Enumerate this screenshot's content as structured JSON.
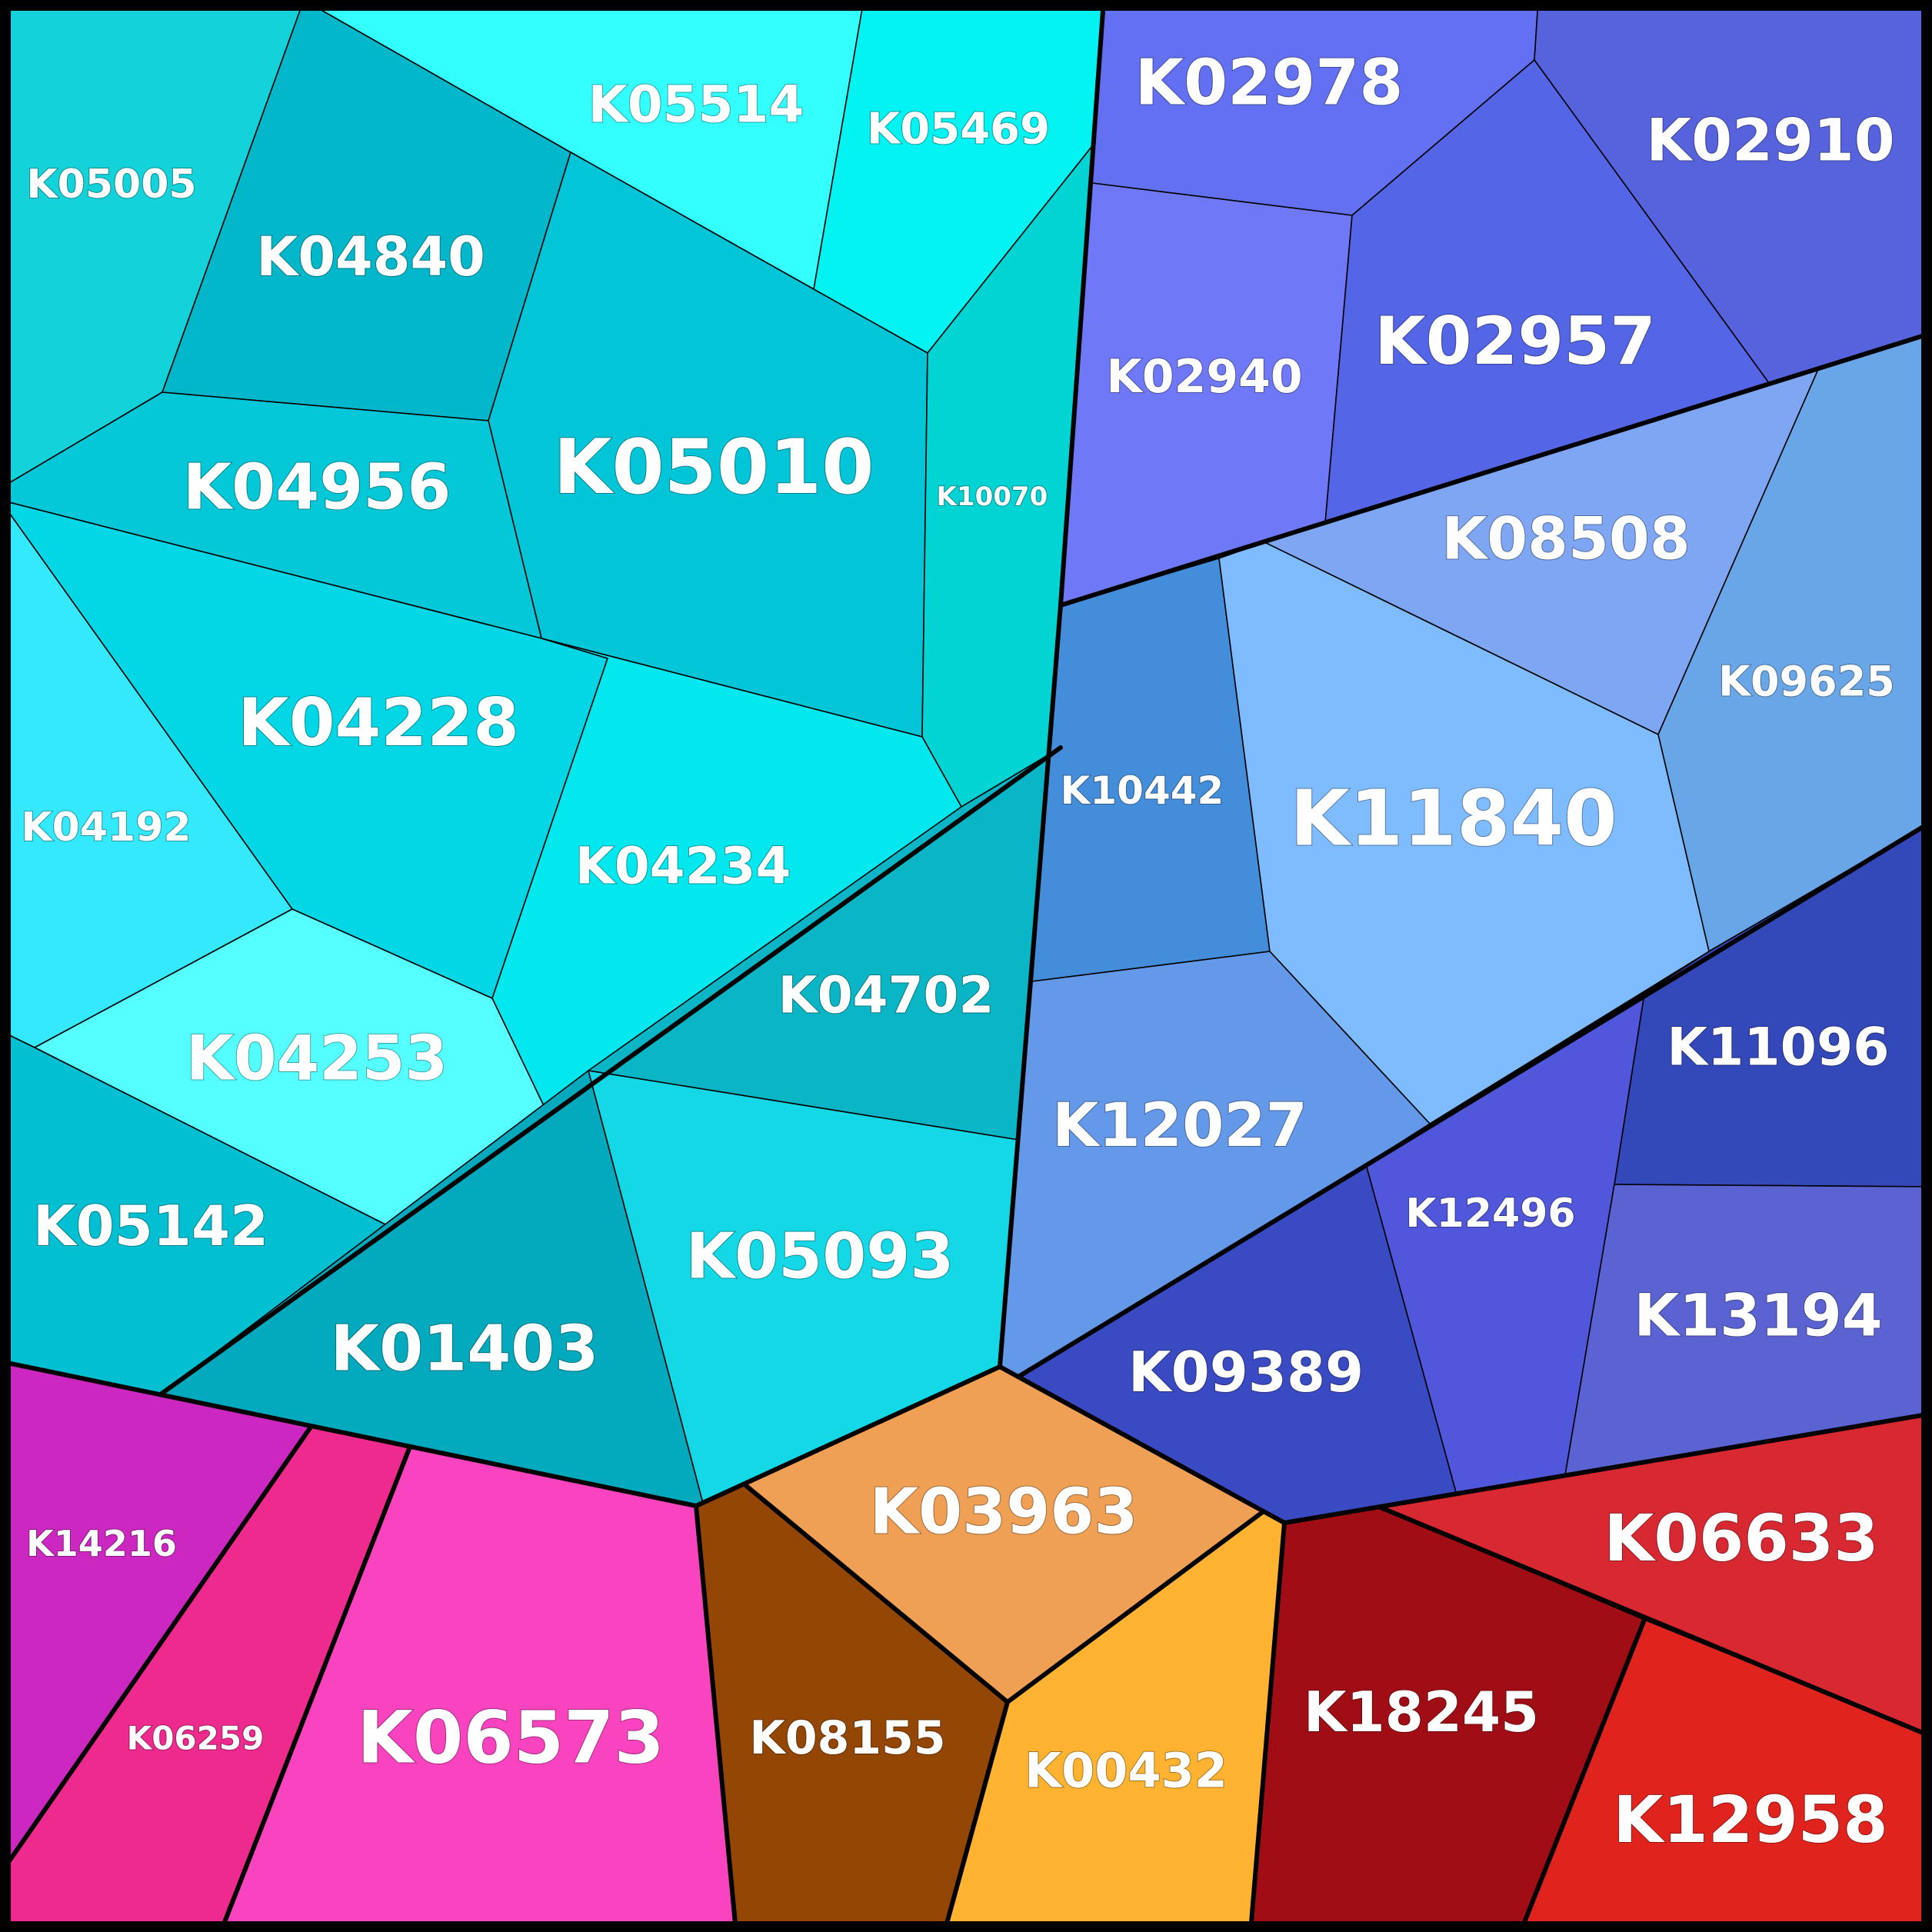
{
  "cells": [
    {
      "label": "K05005",
      "color": "#14D2D9"
    },
    {
      "label": "K04840",
      "color": "#02B7CA"
    },
    {
      "label": "K05514",
      "color": "#33FFFF"
    },
    {
      "label": "K05469",
      "color": "#03F2F2"
    },
    {
      "label": "K05010",
      "color": "#02C6D8"
    },
    {
      "label": "K10070",
      "color": "#02D4D4"
    },
    {
      "label": "K04956",
      "color": "#04C8D8"
    },
    {
      "label": "K04192",
      "color": "#33E9FB"
    },
    {
      "label": "K04228",
      "color": "#03D6E5"
    },
    {
      "label": "K04234",
      "color": "#03E8EE"
    },
    {
      "label": "K04253",
      "color": "#55FFFF"
    },
    {
      "label": "K04702",
      "color": "#0AB5C6"
    },
    {
      "label": "K05142",
      "color": "#03BFD2"
    },
    {
      "label": "K01403",
      "color": "#03A9BC"
    },
    {
      "label": "K05093",
      "color": "#14D8E6"
    },
    {
      "label": "K02978",
      "color": "#6370F1"
    },
    {
      "label": "K02910",
      "color": "#5663DD"
    },
    {
      "label": "K02940",
      "color": "#6F79F7"
    },
    {
      "label": "K02957",
      "color": "#5465E6"
    },
    {
      "label": "K08508",
      "color": "#7FA6F3"
    },
    {
      "label": "K09625",
      "color": "#69A6E8"
    },
    {
      "label": "K10442",
      "color": "#438DDB"
    },
    {
      "label": "K11840",
      "color": "#7FBBFF"
    },
    {
      "label": "K12027",
      "color": "#6499EA"
    },
    {
      "label": "K11096",
      "color": "#3349B9"
    },
    {
      "label": "K12496",
      "color": "#5157DA"
    },
    {
      "label": "K13194",
      "color": "#5B63D2"
    },
    {
      "label": "K09389",
      "color": "#3A4AC3"
    },
    {
      "label": "K03963",
      "color": "#EFA055"
    },
    {
      "label": "K08155",
      "color": "#944705"
    },
    {
      "label": "K00432",
      "color": "#FFB330"
    },
    {
      "label": "K14216",
      "color": "#CC27C1"
    },
    {
      "label": "K06259",
      "color": "#EE2A8E"
    },
    {
      "label": "K06573",
      "color": "#F943BF"
    },
    {
      "label": "K18245",
      "color": "#A10D14"
    },
    {
      "label": "K06633",
      "color": "#D82832"
    },
    {
      "label": "K12958",
      "color": "#E0231D"
    }
  ]
}
